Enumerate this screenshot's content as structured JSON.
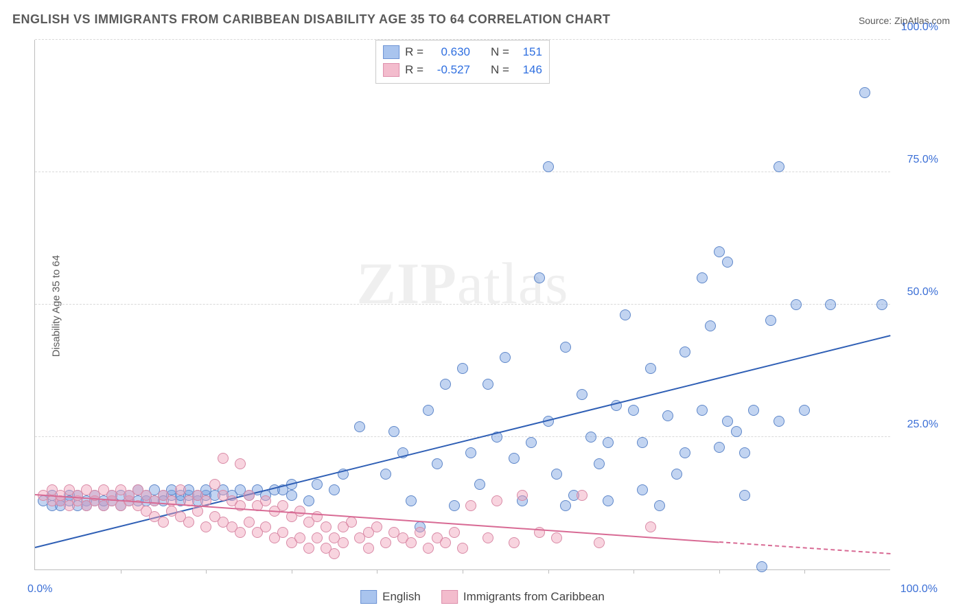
{
  "title": "ENGLISH VS IMMIGRANTS FROM CARIBBEAN DISABILITY AGE 35 TO 64 CORRELATION CHART",
  "source_prefix": "Source: ",
  "source_name": "ZipAtlas.com",
  "ylabel": "Disability Age 35 to 64",
  "watermark_bold": "ZIP",
  "watermark_rest": "atlas",
  "chart": {
    "type": "scatter",
    "xlim": [
      0,
      100
    ],
    "ylim": [
      0,
      100
    ],
    "x_axis_labels": {
      "left": "0.0%",
      "right": "100.0%"
    },
    "y_ticks": [
      25,
      50,
      75,
      100
    ],
    "y_tick_labels": [
      "25.0%",
      "50.0%",
      "75.0%",
      "100.0%"
    ],
    "x_minor_ticks": [
      10,
      20,
      30,
      40,
      50,
      60,
      70,
      80,
      90
    ],
    "grid_color": "#d9d9d9",
    "axis_color": "#bdbdbd",
    "background_color": "#ffffff",
    "tick_label_color": "#3b6fd6",
    "tick_label_fontsize": 16,
    "marker_radius": 8,
    "marker_border_width": 1.2,
    "series": [
      {
        "id": "english",
        "label": "English",
        "fill": "rgba(120,160,225,0.45)",
        "stroke": "#5e87c9",
        "swatch_fill": "#a9c4ee",
        "swatch_stroke": "#6d93d4",
        "trend": {
          "x1": 0,
          "y1": 4,
          "x2": 100,
          "y2": 44,
          "color": "#2f5fb5",
          "width": 2.2,
          "dash": false
        },
        "R": "0.630",
        "N": "151",
        "points": [
          [
            1,
            13
          ],
          [
            2,
            12
          ],
          [
            2,
            14
          ],
          [
            3,
            13
          ],
          [
            3,
            12
          ],
          [
            4,
            14
          ],
          [
            4,
            13
          ],
          [
            5,
            12
          ],
          [
            5,
            14
          ],
          [
            6,
            13
          ],
          [
            6,
            12
          ],
          [
            7,
            13
          ],
          [
            7,
            14
          ],
          [
            8,
            12
          ],
          [
            8,
            13
          ],
          [
            9,
            14
          ],
          [
            9,
            13
          ],
          [
            10,
            12
          ],
          [
            10,
            14
          ],
          [
            11,
            13
          ],
          [
            11,
            14
          ],
          [
            12,
            13
          ],
          [
            12,
            15
          ],
          [
            13,
            13
          ],
          [
            13,
            14
          ],
          [
            14,
            13
          ],
          [
            14,
            15
          ],
          [
            15,
            14
          ],
          [
            15,
            13
          ],
          [
            16,
            14
          ],
          [
            16,
            15
          ],
          [
            17,
            13
          ],
          [
            17,
            14
          ],
          [
            18,
            14
          ],
          [
            18,
            15
          ],
          [
            19,
            13
          ],
          [
            19,
            14
          ],
          [
            20,
            14
          ],
          [
            20,
            15
          ],
          [
            21,
            14
          ],
          [
            22,
            15
          ],
          [
            23,
            14
          ],
          [
            24,
            15
          ],
          [
            25,
            14
          ],
          [
            26,
            15
          ],
          [
            27,
            14
          ],
          [
            28,
            15
          ],
          [
            29,
            15
          ],
          [
            30,
            14
          ],
          [
            30,
            16
          ],
          [
            32,
            13
          ],
          [
            33,
            16
          ],
          [
            35,
            15
          ],
          [
            36,
            18
          ],
          [
            38,
            27
          ],
          [
            41,
            18
          ],
          [
            42,
            26
          ],
          [
            43,
            22
          ],
          [
            44,
            13
          ],
          [
            45,
            8
          ],
          [
            46,
            30
          ],
          [
            47,
            20
          ],
          [
            48,
            35
          ],
          [
            49,
            12
          ],
          [
            50,
            38
          ],
          [
            51,
            22
          ],
          [
            52,
            16
          ],
          [
            53,
            35
          ],
          [
            54,
            25
          ],
          [
            55,
            40
          ],
          [
            56,
            21
          ],
          [
            57,
            13
          ],
          [
            58,
            24
          ],
          [
            59,
            55
          ],
          [
            60,
            28
          ],
          [
            60,
            76
          ],
          [
            61,
            18
          ],
          [
            62,
            42
          ],
          [
            62,
            12
          ],
          [
            63,
            14
          ],
          [
            64,
            33
          ],
          [
            65,
            25
          ],
          [
            66,
            20
          ],
          [
            67,
            24
          ],
          [
            67,
            13
          ],
          [
            68,
            31
          ],
          [
            69,
            48
          ],
          [
            70,
            30
          ],
          [
            71,
            15
          ],
          [
            71,
            24
          ],
          [
            72,
            38
          ],
          [
            73,
            12
          ],
          [
            74,
            29
          ],
          [
            75,
            18
          ],
          [
            76,
            41
          ],
          [
            76,
            22
          ],
          [
            78,
            55
          ],
          [
            78,
            30
          ],
          [
            79,
            46
          ],
          [
            80,
            60
          ],
          [
            80,
            23
          ],
          [
            81,
            28
          ],
          [
            81,
            58
          ],
          [
            82,
            26
          ],
          [
            83,
            22
          ],
          [
            83,
            14
          ],
          [
            84,
            30
          ],
          [
            85,
            0.5
          ],
          [
            86,
            47
          ],
          [
            87,
            28
          ],
          [
            87,
            76
          ],
          [
            89,
            50
          ],
          [
            90,
            30
          ],
          [
            93,
            50
          ],
          [
            97,
            90
          ],
          [
            99,
            50
          ]
        ]
      },
      {
        "id": "caribbean",
        "label": "Immigrants from Caribbean",
        "fill": "rgba(240,160,185,0.45)",
        "stroke": "#d98aa6",
        "swatch_fill": "#f3bccd",
        "swatch_stroke": "#dd8fac",
        "trend": {
          "x1": 0,
          "y1": 14,
          "x2": 80,
          "y2": 5,
          "color": "#d86a94",
          "width": 2,
          "dash": false
        },
        "trend_ext": {
          "x1": 80,
          "y1": 5,
          "x2": 100,
          "y2": 2.8,
          "color": "#d86a94",
          "width": 2,
          "dash": true
        },
        "R": "-0.527",
        "N": "146",
        "points": [
          [
            1,
            14
          ],
          [
            2,
            13
          ],
          [
            2,
            15
          ],
          [
            3,
            13
          ],
          [
            3,
            14
          ],
          [
            4,
            12
          ],
          [
            4,
            15
          ],
          [
            5,
            13
          ],
          [
            5,
            14
          ],
          [
            6,
            12
          ],
          [
            6,
            15
          ],
          [
            7,
            13
          ],
          [
            7,
            14
          ],
          [
            8,
            12
          ],
          [
            8,
            15
          ],
          [
            9,
            13
          ],
          [
            9,
            14
          ],
          [
            10,
            12
          ],
          [
            10,
            15
          ],
          [
            11,
            13
          ],
          [
            11,
            14
          ],
          [
            12,
            12
          ],
          [
            12,
            15
          ],
          [
            13,
            11
          ],
          [
            13,
            14
          ],
          [
            14,
            10
          ],
          [
            14,
            13
          ],
          [
            15,
            9
          ],
          [
            15,
            14
          ],
          [
            16,
            11
          ],
          [
            16,
            13
          ],
          [
            17,
            10
          ],
          [
            17,
            15
          ],
          [
            18,
            9
          ],
          [
            18,
            13
          ],
          [
            19,
            11
          ],
          [
            19,
            14
          ],
          [
            20,
            8
          ],
          [
            20,
            13
          ],
          [
            21,
            10
          ],
          [
            21,
            16
          ],
          [
            22,
            9
          ],
          [
            22,
            14
          ],
          [
            22,
            21
          ],
          [
            23,
            8
          ],
          [
            23,
            13
          ],
          [
            24,
            7
          ],
          [
            24,
            12
          ],
          [
            24,
            20
          ],
          [
            25,
            9
          ],
          [
            25,
            14
          ],
          [
            26,
            7
          ],
          [
            26,
            12
          ],
          [
            27,
            8
          ],
          [
            27,
            13
          ],
          [
            28,
            6
          ],
          [
            28,
            11
          ],
          [
            29,
            7
          ],
          [
            29,
            12
          ],
          [
            30,
            5
          ],
          [
            30,
            10
          ],
          [
            31,
            6
          ],
          [
            31,
            11
          ],
          [
            32,
            4
          ],
          [
            32,
            9
          ],
          [
            33,
            6
          ],
          [
            33,
            10
          ],
          [
            34,
            4
          ],
          [
            34,
            8
          ],
          [
            35,
            6
          ],
          [
            35,
            3
          ],
          [
            36,
            8
          ],
          [
            36,
            5
          ],
          [
            37,
            9
          ],
          [
            38,
            6
          ],
          [
            39,
            7
          ],
          [
            39,
            4
          ],
          [
            40,
            8
          ],
          [
            41,
            5
          ],
          [
            42,
            7
          ],
          [
            43,
            6
          ],
          [
            44,
            5
          ],
          [
            45,
            7
          ],
          [
            46,
            4
          ],
          [
            47,
            6
          ],
          [
            48,
            5
          ],
          [
            49,
            7
          ],
          [
            50,
            4
          ],
          [
            51,
            12
          ],
          [
            53,
            6
          ],
          [
            54,
            13
          ],
          [
            56,
            5
          ],
          [
            57,
            14
          ],
          [
            59,
            7
          ],
          [
            61,
            6
          ],
          [
            64,
            14
          ],
          [
            66,
            5
          ],
          [
            72,
            8
          ]
        ]
      }
    ]
  },
  "stats_box": {
    "rows": [
      {
        "series": "english",
        "R_label": "R =",
        "N_label": "N ="
      },
      {
        "series": "caribbean",
        "R_label": "R =",
        "N_label": "N ="
      }
    ]
  }
}
